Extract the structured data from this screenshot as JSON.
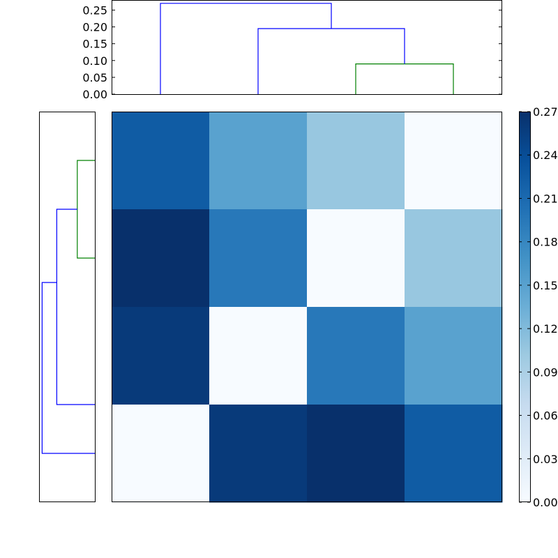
{
  "chart_data": [
    {
      "type": "dendrogram",
      "orientation": "top",
      "ylim": [
        0,
        0.28
      ],
      "yticks": [
        0.0,
        0.05,
        0.1,
        0.15,
        0.2,
        0.25
      ],
      "ytick_labels": [
        "0.00",
        "0.05",
        "0.10",
        "0.15",
        "0.20",
        "0.25"
      ],
      "leaf_count": 4,
      "links": [
        {
          "x": [
            2.5,
            2.5,
            3.5,
            3.5
          ],
          "y": [
            0,
            0.09,
            0.09,
            0
          ],
          "color": "#008000"
        },
        {
          "x": [
            1.5,
            1.5,
            3.0,
            3.0
          ],
          "y": [
            0,
            0.195,
            0.195,
            0.09
          ],
          "color": "#0000ff"
        },
        {
          "x": [
            0.5,
            0.5,
            2.25,
            2.25
          ],
          "y": [
            0,
            0.27,
            0.27,
            0.195
          ],
          "color": "#0000ff"
        }
      ]
    },
    {
      "type": "dendrogram",
      "orientation": "left",
      "leaf_count": 4,
      "links": [
        {
          "x": [
            0,
            0.09,
            0.09,
            0
          ],
          "y": [
            0.5,
            0.5,
            1.5,
            1.5
          ],
          "color": "#008000"
        },
        {
          "x": [
            0,
            0.195,
            0.195,
            0.09
          ],
          "y": [
            3.0,
            3.0,
            1.0,
            1.0
          ],
          "color": "#0000ff"
        },
        {
          "x": [
            0,
            0.27,
            0.27,
            0.195
          ],
          "y": [
            3.5,
            3.5,
            1.75,
            1.75
          ],
          "color": "#0000ff"
        }
      ],
      "xlim": [
        0,
        0.28
      ]
    },
    {
      "type": "heatmap",
      "colormap": "Blues",
      "vmin": 0,
      "vmax": 0.27,
      "rows": 4,
      "cols": 4,
      "values": [
        [
          0.225,
          0.15,
          0.105,
          0.0
        ],
        [
          0.27,
          0.195,
          0.0,
          0.105
        ],
        [
          0.26,
          0.0,
          0.195,
          0.15
        ],
        [
          0.0,
          0.26,
          0.27,
          0.225
        ]
      ]
    },
    {
      "type": "colorbar",
      "colormap": "Blues",
      "ylim": [
        0,
        0.27
      ],
      "ticks": [
        0.0,
        0.03,
        0.06,
        0.09,
        0.12,
        0.15,
        0.18,
        0.21,
        0.24,
        0.27
      ],
      "tick_labels": [
        "0.00",
        "0.03",
        "0.06",
        "0.09",
        "0.12",
        "0.15",
        "0.18",
        "0.21",
        "0.24",
        "0.27"
      ]
    }
  ],
  "colors": {
    "axes": "#000000",
    "cmap_low": "#f7fbff",
    "cmap_high": "#08306b"
  }
}
